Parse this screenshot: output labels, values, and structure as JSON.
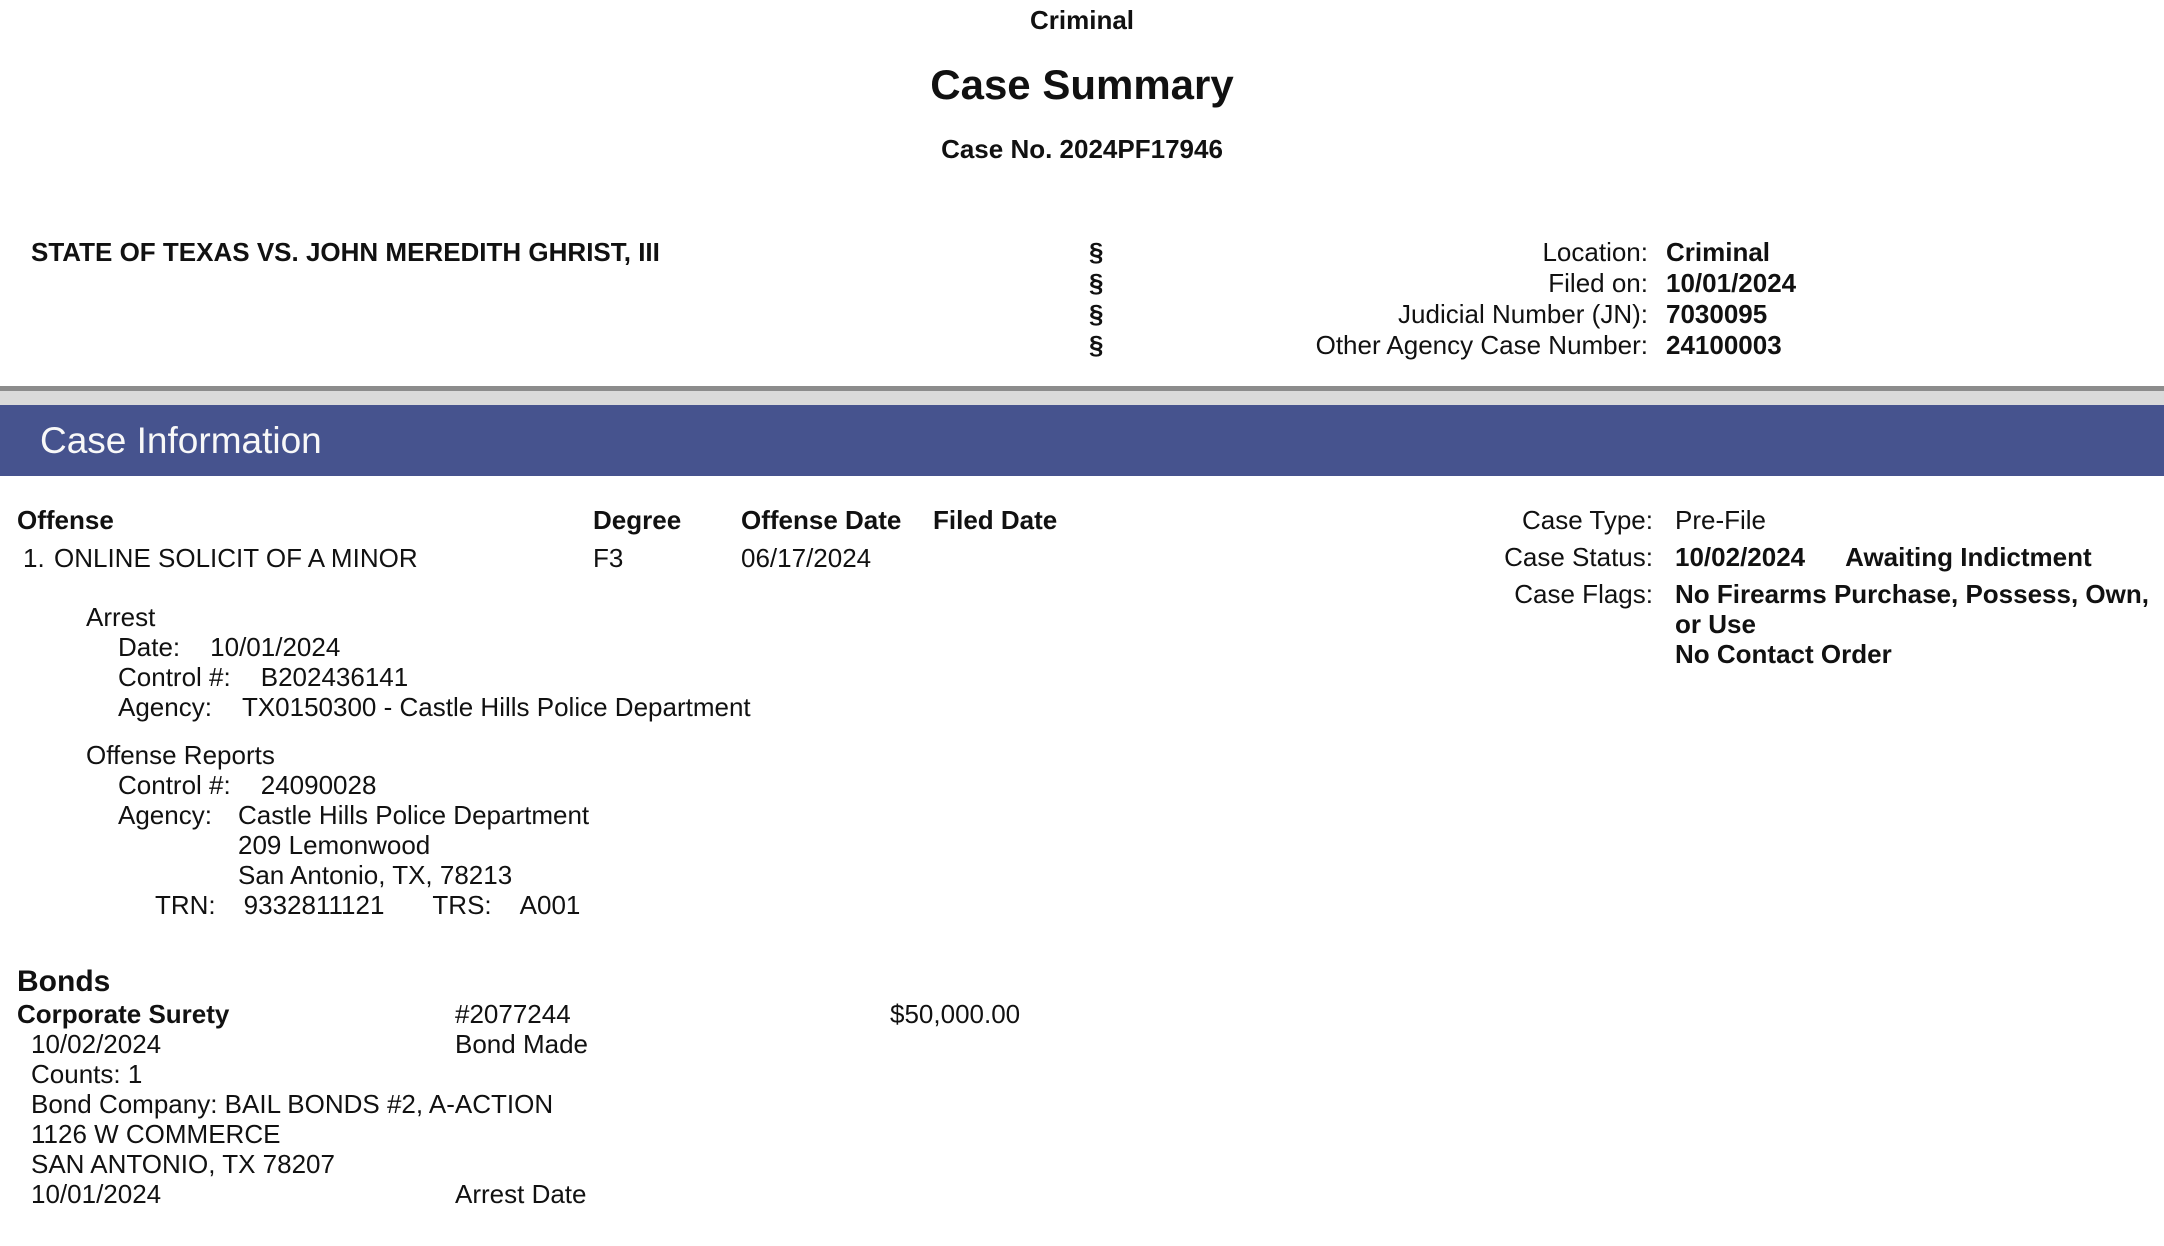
{
  "header": {
    "court_type": "Criminal",
    "title": "Case Summary",
    "case_no": "Case No. 2024PF17946"
  },
  "caption": {
    "style": "STATE OF TEXAS VS. JOHN MEREDITH GHRIST, III",
    "section_symbol": "§",
    "meta": [
      {
        "label": "Location:",
        "value": "Criminal"
      },
      {
        "label": "Filed on:",
        "value": "10/01/2024"
      },
      {
        "label": "Judicial Number (JN):",
        "value": "7030095"
      },
      {
        "label": "Other Agency Case Number:",
        "value": "24100003"
      }
    ]
  },
  "section_header": "Case Information",
  "offense_table": {
    "headers": {
      "offense": "Offense",
      "degree": "Degree",
      "offense_date": "Offense Date",
      "filed_date": "Filed Date"
    },
    "rows": [
      {
        "num": "1.",
        "name": "ONLINE SOLICIT OF A MINOR",
        "degree": "F3",
        "offense_date": "06/17/2024",
        "filed_date": ""
      }
    ]
  },
  "arrest": {
    "heading": "Arrest",
    "date_label": "Date:",
    "date": "10/01/2024",
    "control_label": "Control #:",
    "control": "B202436141",
    "agency_label": "Agency:",
    "agency": "TX0150300 - Castle Hills Police Department"
  },
  "offense_reports": {
    "heading": "Offense Reports",
    "control_label": "Control #:",
    "control": "24090028",
    "agency_label": "Agency:",
    "agency": "Castle Hills Police Department",
    "address1": "209 Lemonwood",
    "address2": "San Antonio, TX, 78213",
    "trn_label": "TRN:",
    "trn": "9332811121",
    "trs_label": "TRS:",
    "trs": "A001"
  },
  "case_meta": {
    "type_label": "Case Type:",
    "type": "Pre-File",
    "status_label": "Case Status:",
    "status_date": "10/02/2024",
    "status": "Awaiting Indictment",
    "flags_label": "Case Flags:",
    "flags": [
      "No Firearms Purchase, Possess, Own, or Use",
      "No Contact Order"
    ]
  },
  "bonds": {
    "heading": "Bonds",
    "type": "Corporate Surety",
    "number": "#2077244",
    "amount": "$50,000.00",
    "made_date": "10/02/2024",
    "made_label": "Bond Made",
    "counts": "Counts: 1",
    "company": "Bond Company: BAIL BONDS #2, A-ACTION",
    "address1": "1126 W COMMERCE",
    "address2": "SAN ANTONIO, TX 78207",
    "arrest_date": "10/01/2024",
    "arrest_label": "Arrest Date"
  },
  "colors": {
    "section_bar": "#46538e",
    "divider_line": "#8c8c8c",
    "divider_band": "#dadada",
    "text": "#111111"
  }
}
